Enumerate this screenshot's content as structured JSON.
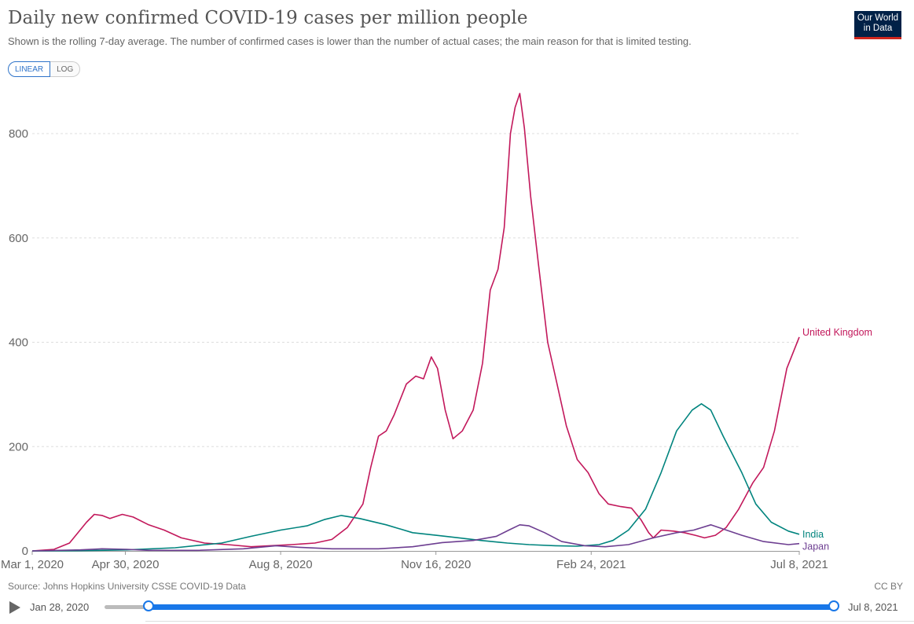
{
  "header": {
    "title": "Daily new confirmed COVID-19 cases per million people",
    "subtitle": "Shown is the rolling 7-day average. The number of confirmed cases is lower than the number of actual cases; the main reason for that is limited testing.",
    "logo_line1": "Our World",
    "logo_line2": "in Data"
  },
  "controls": {
    "linear_label": "LINEAR",
    "log_label": "LOG",
    "active": "LINEAR"
  },
  "footer": {
    "source": "Source: Johns Hopkins University CSSE COVID-19 Data",
    "license": "CC BY"
  },
  "timeline": {
    "start_label": "Jan 28, 2020",
    "end_label": "Jul 8, 2021",
    "start_fraction": 0.06,
    "end_fraction": 1.0
  },
  "colors": {
    "uk": "#c2185b",
    "india": "#00847e",
    "japan": "#6d3e91",
    "grid": "#dddddd",
    "accent": "#1877e8"
  },
  "chart_data": {
    "type": "line",
    "x_start": "2020-03-01",
    "x_end": "2021-07-08",
    "ylim": [
      0,
      880
    ],
    "yticks": [
      0,
      200,
      400,
      600,
      800
    ],
    "xtick_labels": [
      "Mar 1, 2020",
      "Apr 30, 2020",
      "Aug 8, 2020",
      "Nov 16, 2020",
      "Feb 24, 2021",
      "Jul 8, 2021"
    ],
    "xtick_dates": [
      "2020-03-01",
      "2020-04-30",
      "2020-08-08",
      "2020-11-16",
      "2021-02-24",
      "2021-07-08"
    ],
    "series": [
      {
        "name": "United Kingdom",
        "key": "uk",
        "points": [
          [
            "2020-03-01",
            0
          ],
          [
            "2020-03-15",
            3
          ],
          [
            "2020-03-25",
            15
          ],
          [
            "2020-04-05",
            55
          ],
          [
            "2020-04-10",
            70
          ],
          [
            "2020-04-15",
            68
          ],
          [
            "2020-04-20",
            62
          ],
          [
            "2020-04-28",
            70
          ],
          [
            "2020-05-05",
            65
          ],
          [
            "2020-05-15",
            50
          ],
          [
            "2020-05-25",
            40
          ],
          [
            "2020-06-05",
            25
          ],
          [
            "2020-06-20",
            15
          ],
          [
            "2020-07-05",
            12
          ],
          [
            "2020-07-20",
            8
          ],
          [
            "2020-08-01",
            10
          ],
          [
            "2020-08-15",
            12
          ],
          [
            "2020-08-30",
            15
          ],
          [
            "2020-09-10",
            22
          ],
          [
            "2020-09-20",
            45
          ],
          [
            "2020-09-30",
            90
          ],
          [
            "2020-10-05",
            160
          ],
          [
            "2020-10-10",
            220
          ],
          [
            "2020-10-15",
            230
          ],
          [
            "2020-10-20",
            260
          ],
          [
            "2020-10-28",
            320
          ],
          [
            "2020-11-03",
            335
          ],
          [
            "2020-11-08",
            330
          ],
          [
            "2020-11-13",
            372
          ],
          [
            "2020-11-17",
            350
          ],
          [
            "2020-11-22",
            270
          ],
          [
            "2020-11-27",
            215
          ],
          [
            "2020-12-03",
            230
          ],
          [
            "2020-12-10",
            270
          ],
          [
            "2020-12-16",
            360
          ],
          [
            "2020-12-21",
            500
          ],
          [
            "2020-12-26",
            540
          ],
          [
            "2020-12-30",
            620
          ],
          [
            "2021-01-03",
            800
          ],
          [
            "2021-01-06",
            850
          ],
          [
            "2021-01-09",
            877
          ],
          [
            "2021-01-12",
            810
          ],
          [
            "2021-01-16",
            680
          ],
          [
            "2021-01-21",
            550
          ],
          [
            "2021-01-27",
            400
          ],
          [
            "2021-02-02",
            320
          ],
          [
            "2021-02-08",
            240
          ],
          [
            "2021-02-15",
            175
          ],
          [
            "2021-02-22",
            150
          ],
          [
            "2021-03-01",
            110
          ],
          [
            "2021-03-07",
            90
          ],
          [
            "2021-03-15",
            85
          ],
          [
            "2021-03-22",
            82
          ],
          [
            "2021-03-28",
            60
          ],
          [
            "2021-04-02",
            35
          ],
          [
            "2021-04-05",
            25
          ],
          [
            "2021-04-10",
            40
          ],
          [
            "2021-04-18",
            38
          ],
          [
            "2021-04-25",
            35
          ],
          [
            "2021-05-02",
            30
          ],
          [
            "2021-05-08",
            25
          ],
          [
            "2021-05-15",
            30
          ],
          [
            "2021-05-22",
            45
          ],
          [
            "2021-05-30",
            80
          ],
          [
            "2021-06-08",
            130
          ],
          [
            "2021-06-15",
            160
          ],
          [
            "2021-06-22",
            230
          ],
          [
            "2021-06-30",
            350
          ],
          [
            "2021-07-08",
            410
          ]
        ]
      },
      {
        "name": "India",
        "key": "india",
        "points": [
          [
            "2020-03-01",
            0
          ],
          [
            "2020-04-01",
            0.5
          ],
          [
            "2020-05-01",
            2
          ],
          [
            "2020-06-01",
            6
          ],
          [
            "2020-07-01",
            15
          ],
          [
            "2020-07-20",
            28
          ],
          [
            "2020-08-08",
            40
          ],
          [
            "2020-08-25",
            48
          ],
          [
            "2020-09-05",
            60
          ],
          [
            "2020-09-16",
            68
          ],
          [
            "2020-09-28",
            62
          ],
          [
            "2020-10-15",
            50
          ],
          [
            "2020-11-01",
            35
          ],
          [
            "2020-11-16",
            30
          ],
          [
            "2020-12-01",
            25
          ],
          [
            "2020-12-15",
            20
          ],
          [
            "2021-01-01",
            15
          ],
          [
            "2021-01-15",
            12
          ],
          [
            "2021-02-01",
            10
          ],
          [
            "2021-02-15",
            9
          ],
          [
            "2021-03-01",
            12
          ],
          [
            "2021-03-10",
            20
          ],
          [
            "2021-03-20",
            40
          ],
          [
            "2021-03-31",
            80
          ],
          [
            "2021-04-10",
            150
          ],
          [
            "2021-04-20",
            230
          ],
          [
            "2021-04-30",
            270
          ],
          [
            "2021-05-06",
            282
          ],
          [
            "2021-05-12",
            270
          ],
          [
            "2021-05-20",
            220
          ],
          [
            "2021-06-01",
            150
          ],
          [
            "2021-06-10",
            90
          ],
          [
            "2021-06-20",
            55
          ],
          [
            "2021-07-01",
            38
          ],
          [
            "2021-07-08",
            32
          ]
        ]
      },
      {
        "name": "Japan",
        "key": "japan",
        "points": [
          [
            "2020-03-01",
            0
          ],
          [
            "2020-04-01",
            2
          ],
          [
            "2020-04-15",
            4
          ],
          [
            "2020-05-01",
            3
          ],
          [
            "2020-05-15",
            1
          ],
          [
            "2020-06-15",
            1
          ],
          [
            "2020-07-15",
            4
          ],
          [
            "2020-08-05",
            10
          ],
          [
            "2020-08-20",
            7
          ],
          [
            "2020-09-10",
            4
          ],
          [
            "2020-10-10",
            4
          ],
          [
            "2020-11-01",
            8
          ],
          [
            "2020-11-20",
            16
          ],
          [
            "2020-12-10",
            20
          ],
          [
            "2020-12-25",
            28
          ],
          [
            "2021-01-02",
            40
          ],
          [
            "2021-01-09",
            50
          ],
          [
            "2021-01-15",
            48
          ],
          [
            "2021-01-25",
            35
          ],
          [
            "2021-02-05",
            18
          ],
          [
            "2021-02-20",
            10
          ],
          [
            "2021-03-05",
            8
          ],
          [
            "2021-03-20",
            12
          ],
          [
            "2021-04-05",
            25
          ],
          [
            "2021-04-20",
            35
          ],
          [
            "2021-05-01",
            40
          ],
          [
            "2021-05-12",
            50
          ],
          [
            "2021-05-20",
            42
          ],
          [
            "2021-06-01",
            30
          ],
          [
            "2021-06-15",
            18
          ],
          [
            "2021-07-01",
            12
          ],
          [
            "2021-07-08",
            14
          ]
        ]
      }
    ]
  }
}
